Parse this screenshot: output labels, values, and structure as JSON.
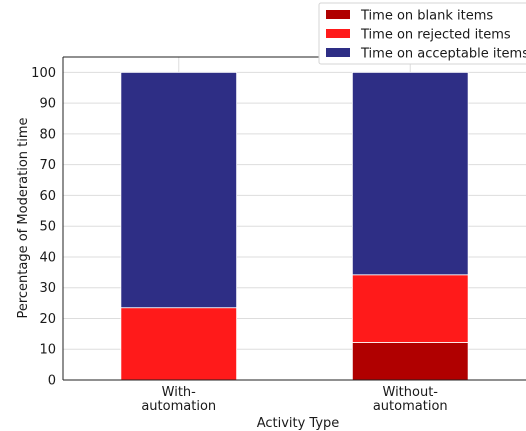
{
  "chart_data": {
    "type": "bar",
    "stacked": true,
    "title": "",
    "xlabel": "Activity Type",
    "ylabel": "Percentage of Moderation time",
    "ylim": [
      0,
      105
    ],
    "yticks": [
      0,
      10,
      20,
      30,
      40,
      50,
      60,
      70,
      80,
      90,
      100
    ],
    "grid": true,
    "legend_position": "top-right",
    "categories": [
      [
        "With-",
        "automation"
      ],
      [
        "Without-",
        "automation"
      ]
    ],
    "series": [
      {
        "name": "Time on blank items",
        "color": "#b00000",
        "values": [
          0,
          12.2
        ]
      },
      {
        "name": "Time on rejected items",
        "color": "#ff1a1a",
        "values": [
          23.5,
          22
        ]
      },
      {
        "name": "Time on acceptable items",
        "color": "#2e2e85",
        "values": [
          76.5,
          65.8
        ]
      }
    ]
  }
}
